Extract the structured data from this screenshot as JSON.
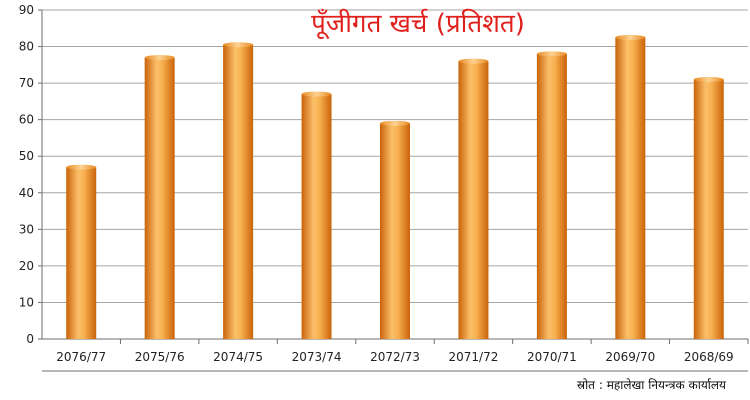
{
  "chart_data": {
    "type": "bar",
    "title": "पूँजीगत खर्च (प्रतिशत)",
    "categories": [
      "2076/77",
      "2075/76",
      "2074/75",
      "2073/74",
      "2072/73",
      "2071/72",
      "2070/71",
      "2069/70",
      "2068/69"
    ],
    "values": [
      47,
      77,
      80.5,
      67,
      59,
      76,
      78,
      82.5,
      71
    ],
    "ylim": [
      0,
      90
    ],
    "yticks": [
      0,
      10,
      20,
      30,
      40,
      50,
      60,
      70,
      80,
      90
    ],
    "grid": true,
    "legend": "none",
    "colors": {
      "bar_light": "#fbc06a",
      "bar_mid": "#f59a25",
      "bar_dark": "#c9630a",
      "title": "#e0201c",
      "grid": "#a6a6a6",
      "axis": "#6e6e6e"
    }
  },
  "source_note": "स्रोत : महालेखा नियन्त्रक कार्यालय"
}
